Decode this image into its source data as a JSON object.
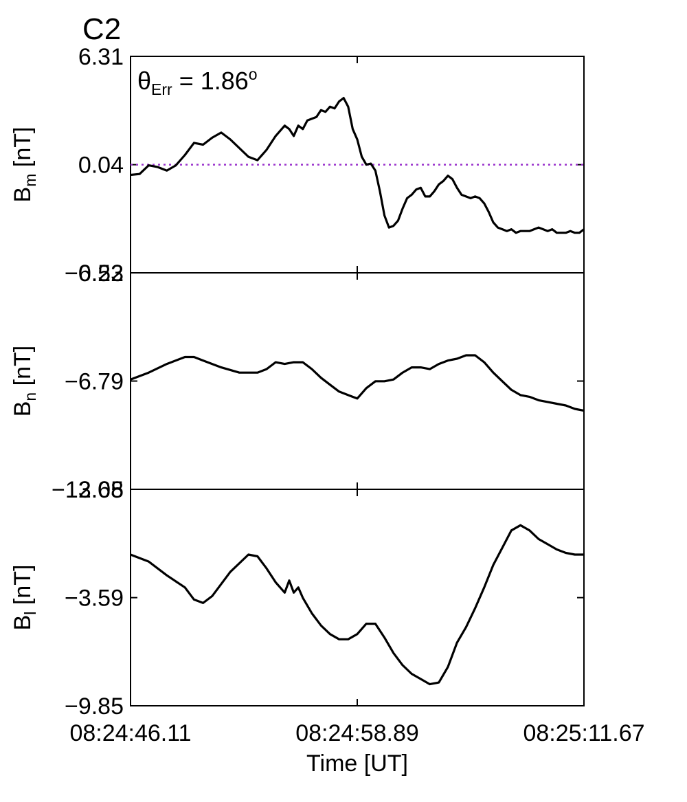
{
  "chart_data": {
    "type": "line",
    "title": "C2",
    "title_color": "#ff0000",
    "xlabel": "Time [UT]",
    "x_ticks": [
      "08:24:46.11",
      "08:24:58.89",
      "08:25:11.67"
    ],
    "grid": false,
    "panels": [
      {
        "id": "bm",
        "ylabel": {
          "main": "B",
          "sub": "m",
          "unit": " [nT]"
        },
        "ylim": [
          -6.22,
          6.31
        ],
        "y_ticks": [
          {
            "value": 6.31,
            "label": "6.31"
          },
          {
            "value": 0.04,
            "label": "0.04"
          },
          {
            "value": -6.22,
            "label": "−6.22"
          }
        ],
        "annotation": {
          "main": "θ",
          "sub": "Err",
          "rest": " =  1.86",
          "sup": "o"
        },
        "reference_line": {
          "value": 0.04,
          "color": "#9933cc",
          "style": "dotted"
        },
        "line_color": "#000000",
        "x": [
          0,
          0.02,
          0.04,
          0.06,
          0.08,
          0.1,
          0.12,
          0.14,
          0.16,
          0.18,
          0.2,
          0.22,
          0.24,
          0.26,
          0.28,
          0.3,
          0.32,
          0.34,
          0.35,
          0.36,
          0.37,
          0.38,
          0.39,
          0.4,
          0.41,
          0.42,
          0.43,
          0.44,
          0.45,
          0.46,
          0.47,
          0.48,
          0.49,
          0.5,
          0.51,
          0.52,
          0.53,
          0.54,
          0.55,
          0.56,
          0.57,
          0.58,
          0.59,
          0.6,
          0.61,
          0.62,
          0.63,
          0.64,
          0.65,
          0.66,
          0.67,
          0.68,
          0.69,
          0.7,
          0.71,
          0.72,
          0.73,
          0.74,
          0.75,
          0.76,
          0.77,
          0.78,
          0.79,
          0.8,
          0.81,
          0.82,
          0.83,
          0.84,
          0.85,
          0.86,
          0.87,
          0.88,
          0.89,
          0.9,
          0.91,
          0.92,
          0.93,
          0.94,
          0.95,
          0.96,
          0.97,
          0.98,
          0.99,
          1.0
        ],
        "y": [
          -0.55,
          -0.5,
          0.0,
          -0.1,
          -0.3,
          0.0,
          0.6,
          1.3,
          1.2,
          1.6,
          1.9,
          1.5,
          1.0,
          0.5,
          0.3,
          0.9,
          1.7,
          2.3,
          2.1,
          1.7,
          2.3,
          2.1,
          2.6,
          2.7,
          2.8,
          3.2,
          3.1,
          3.4,
          3.3,
          3.7,
          3.9,
          3.4,
          2.1,
          1.5,
          0.5,
          0.04,
          0.1,
          -0.3,
          -1.5,
          -2.9,
          -3.6,
          -3.5,
          -3.2,
          -2.5,
          -1.9,
          -1.7,
          -1.4,
          -1.3,
          -1.8,
          -1.8,
          -1.5,
          -1.1,
          -0.9,
          -0.6,
          -0.8,
          -1.3,
          -1.7,
          -1.8,
          -1.9,
          -1.8,
          -1.9,
          -2.2,
          -2.7,
          -3.3,
          -3.6,
          -3.7,
          -3.8,
          -3.7,
          -3.9,
          -3.8,
          -3.8,
          -3.8,
          -3.7,
          -3.6,
          -3.7,
          -3.8,
          -3.7,
          -3.9,
          -3.9,
          -3.9,
          -3.8,
          -3.9,
          -3.9,
          -3.7
        ]
      },
      {
        "id": "bn",
        "ylabel": {
          "main": "B",
          "sub": "n",
          "unit": " [nT]"
        },
        "ylim": [
          -13.05,
          -0.53
        ],
        "y_ticks": [
          {
            "value": -0.53,
            "label": "−0.53"
          },
          {
            "value": -6.79,
            "label": "−6.79"
          },
          {
            "value": -13.05,
            "label": "−13.05"
          }
        ],
        "line_color": "#000000",
        "x": [
          0,
          0.04,
          0.08,
          0.12,
          0.14,
          0.16,
          0.2,
          0.24,
          0.28,
          0.3,
          0.32,
          0.34,
          0.36,
          0.38,
          0.4,
          0.42,
          0.44,
          0.46,
          0.48,
          0.5,
          0.52,
          0.54,
          0.56,
          0.58,
          0.6,
          0.62,
          0.64,
          0.66,
          0.68,
          0.7,
          0.72,
          0.74,
          0.76,
          0.78,
          0.8,
          0.82,
          0.84,
          0.86,
          0.88,
          0.9,
          0.92,
          0.94,
          0.96,
          0.98,
          1.0
        ],
        "y": [
          -6.7,
          -6.3,
          -5.8,
          -5.4,
          -5.4,
          -5.6,
          -6.0,
          -6.3,
          -6.3,
          -6.1,
          -5.7,
          -5.8,
          -5.7,
          -5.7,
          -6.1,
          -6.6,
          -7.0,
          -7.4,
          -7.6,
          -7.8,
          -7.2,
          -6.8,
          -6.8,
          -6.7,
          -6.3,
          -6.0,
          -6.0,
          -6.1,
          -5.8,
          -5.6,
          -5.5,
          -5.3,
          -5.3,
          -5.7,
          -6.3,
          -6.8,
          -7.3,
          -7.6,
          -7.7,
          -7.9,
          -8.0,
          -8.1,
          -8.2,
          -8.4,
          -8.5
        ]
      },
      {
        "id": "bl",
        "ylabel": {
          "main": "B",
          "sub": "l",
          "unit": " [nT]"
        },
        "ylim": [
          -9.85,
          2.68
        ],
        "y_ticks": [
          {
            "value": 2.68,
            "label": "2.68"
          },
          {
            "value": -3.59,
            "label": "−3.59"
          },
          {
            "value": -9.85,
            "label": "−9.85"
          }
        ],
        "line_color": "#000000",
        "x": [
          0,
          0.04,
          0.08,
          0.12,
          0.14,
          0.16,
          0.18,
          0.2,
          0.22,
          0.24,
          0.26,
          0.28,
          0.3,
          0.32,
          0.34,
          0.35,
          0.36,
          0.37,
          0.38,
          0.4,
          0.42,
          0.44,
          0.46,
          0.48,
          0.5,
          0.52,
          0.54,
          0.56,
          0.58,
          0.6,
          0.62,
          0.64,
          0.66,
          0.68,
          0.7,
          0.72,
          0.74,
          0.76,
          0.78,
          0.8,
          0.82,
          0.84,
          0.86,
          0.88,
          0.9,
          0.92,
          0.94,
          0.96,
          0.98,
          1.0
        ],
        "y": [
          -1.1,
          -1.5,
          -2.3,
          -3.0,
          -3.7,
          -3.9,
          -3.5,
          -2.8,
          -2.1,
          -1.6,
          -1.1,
          -1.2,
          -1.9,
          -2.7,
          -3.3,
          -2.6,
          -3.3,
          -3.0,
          -3.6,
          -4.5,
          -5.2,
          -5.7,
          -6.0,
          -6.0,
          -5.7,
          -5.1,
          -5.1,
          -5.9,
          -6.8,
          -7.5,
          -8.0,
          -8.3,
          -8.6,
          -8.5,
          -7.6,
          -6.2,
          -5.3,
          -4.2,
          -3.0,
          -1.7,
          -0.7,
          0.3,
          0.6,
          0.3,
          -0.2,
          -0.5,
          -0.8,
          -1.0,
          -1.1,
          -1.1
        ]
      }
    ]
  }
}
